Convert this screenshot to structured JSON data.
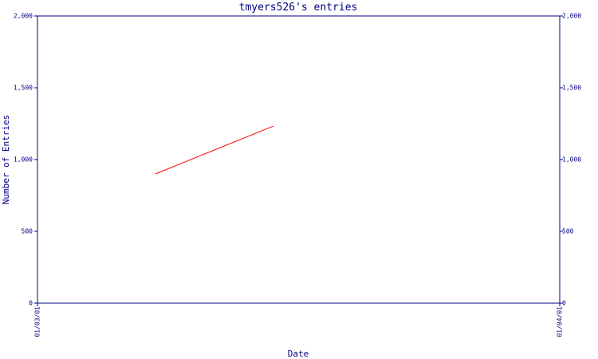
{
  "chart_data": {
    "type": "line",
    "title": "tmyers526's entries",
    "x_label": "Date",
    "y_label": "Number of Entries",
    "x": [
      "08/03/01",
      "15/03/01"
    ],
    "xlim": [
      "01/03/01",
      "01/04/01"
    ],
    "xticks": [
      "01/03/01",
      "01/04/01"
    ],
    "series": [
      {
        "color": "#ff0000",
        "values": [
          900,
          1233
        ]
      }
    ],
    "ylim": [
      0,
      2000
    ],
    "yticks": [
      0,
      500,
      {
        "value": 1000,
        "label": "1,000"
      },
      {
        "value": 1500,
        "label": "1,500"
      },
      {
        "value": 2000,
        "label": "2,000"
      }
    ],
    "y2lim": [
      0,
      2000
    ],
    "y2ticks": [
      0,
      500,
      {
        "value": 1000,
        "label": "1,000"
      },
      {
        "value": 1500,
        "label": "1,500"
      },
      {
        "value": 2000,
        "label": "2,000"
      }
    ],
    "axis_color": "#000080"
  }
}
